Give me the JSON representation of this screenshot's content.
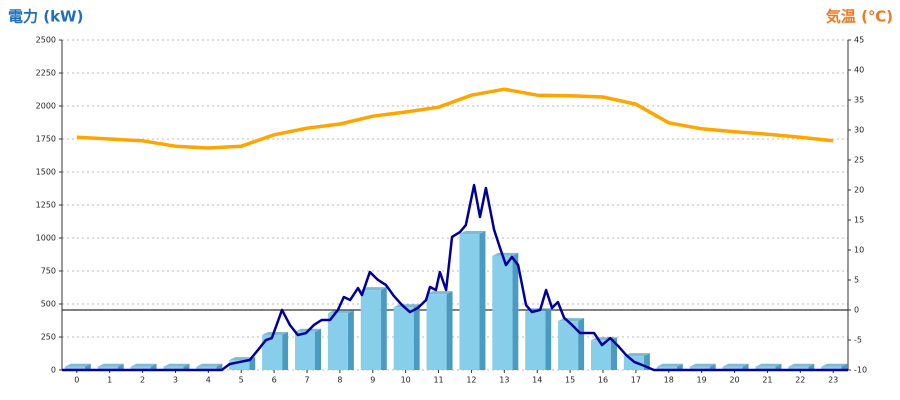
{
  "chart_data": {
    "type": "bar-line-dual",
    "title": "電力 (kW)",
    "y2_title": "気温 (℃)",
    "xlim": [
      -0.45,
      23.45
    ],
    "xticks": [
      0,
      1,
      2,
      3,
      4,
      5,
      6,
      7,
      8,
      9,
      10,
      11,
      12,
      13,
      14,
      15,
      16,
      17,
      18,
      19,
      20,
      21,
      22,
      23
    ],
    "ylim": [
      0,
      2500
    ],
    "yticks": [
      0,
      250,
      500,
      750,
      1000,
      1250,
      1500,
      1750,
      2000,
      2250,
      2500
    ],
    "y2lim": [
      -10,
      45
    ],
    "y2ticks": [
      -10,
      -5,
      0,
      5,
      10,
      15,
      20,
      25,
      30,
      35,
      40,
      45
    ],
    "grid": true,
    "bars": {
      "color": "#87ceeb",
      "side_color": "#4a9bbf",
      "x": [
        0,
        1,
        2,
        3,
        4,
        5,
        6,
        7,
        8,
        9,
        10,
        11,
        12,
        13,
        14,
        15,
        16,
        17,
        18,
        19,
        20,
        21,
        22,
        23
      ],
      "values": [
        25,
        25,
        25,
        25,
        25,
        75,
        265,
        290,
        430,
        605,
        475,
        575,
        1030,
        865,
        445,
        370,
        225,
        105,
        25,
        25,
        25,
        25,
        25,
        25
      ]
    },
    "power_line": {
      "color": "#000099",
      "x": [
        -0.45,
        4.41,
        4.65,
        4.96,
        5.26,
        5.51,
        5.75,
        5.93,
        6.24,
        6.48,
        6.72,
        6.97,
        7.21,
        7.45,
        7.7,
        7.94,
        8.12,
        8.31,
        8.55,
        8.67,
        8.91,
        9.16,
        9.4,
        9.64,
        9.89,
        10.13,
        10.37,
        10.62,
        10.74,
        10.92,
        11.04,
        11.23,
        11.41,
        11.65,
        11.83,
        12.08,
        12.26,
        12.44,
        12.69,
        12.87,
        13.05,
        13.23,
        13.42,
        13.66,
        13.84,
        14.09,
        14.27,
        14.45,
        14.63,
        14.82,
        15.06,
        15.3,
        15.73,
        15.97,
        16.22,
        16.46,
        16.7,
        16.95,
        17.19,
        17.55,
        23.45
      ],
      "values": [
        0,
        0,
        45,
        61,
        76,
        152,
        227,
        242,
        455,
        341,
        265,
        280,
        341,
        379,
        379,
        455,
        553,
        530,
        621,
        568,
        742,
        682,
        644,
        561,
        492,
        439,
        470,
        530,
        629,
        606,
        742,
        606,
        1008,
        1045,
        1098,
        1401,
        1159,
        1379,
        1061,
        924,
        795,
        856,
        795,
        492,
        439,
        455,
        606,
        470,
        515,
        394,
        341,
        280,
        280,
        189,
        242,
        182,
        114,
        61,
        38,
        0,
        0
      ]
    },
    "temp_line": {
      "color": "#ffa500",
      "axis": "y2",
      "x": [
        0,
        1,
        2,
        3,
        4,
        5,
        6,
        7,
        8,
        9,
        10,
        11,
        12,
        13,
        14,
        15,
        16,
        17,
        18,
        19,
        20,
        21,
        22,
        23
      ],
      "values": [
        28.8,
        28.5,
        28.2,
        27.3,
        27.0,
        27.3,
        29.2,
        30.3,
        31.0,
        32.3,
        33.0,
        33.8,
        35.8,
        36.8,
        35.8,
        35.7,
        35.5,
        34.3,
        31.2,
        30.2,
        29.7,
        29.3,
        28.8,
        28.2
      ]
    }
  }
}
